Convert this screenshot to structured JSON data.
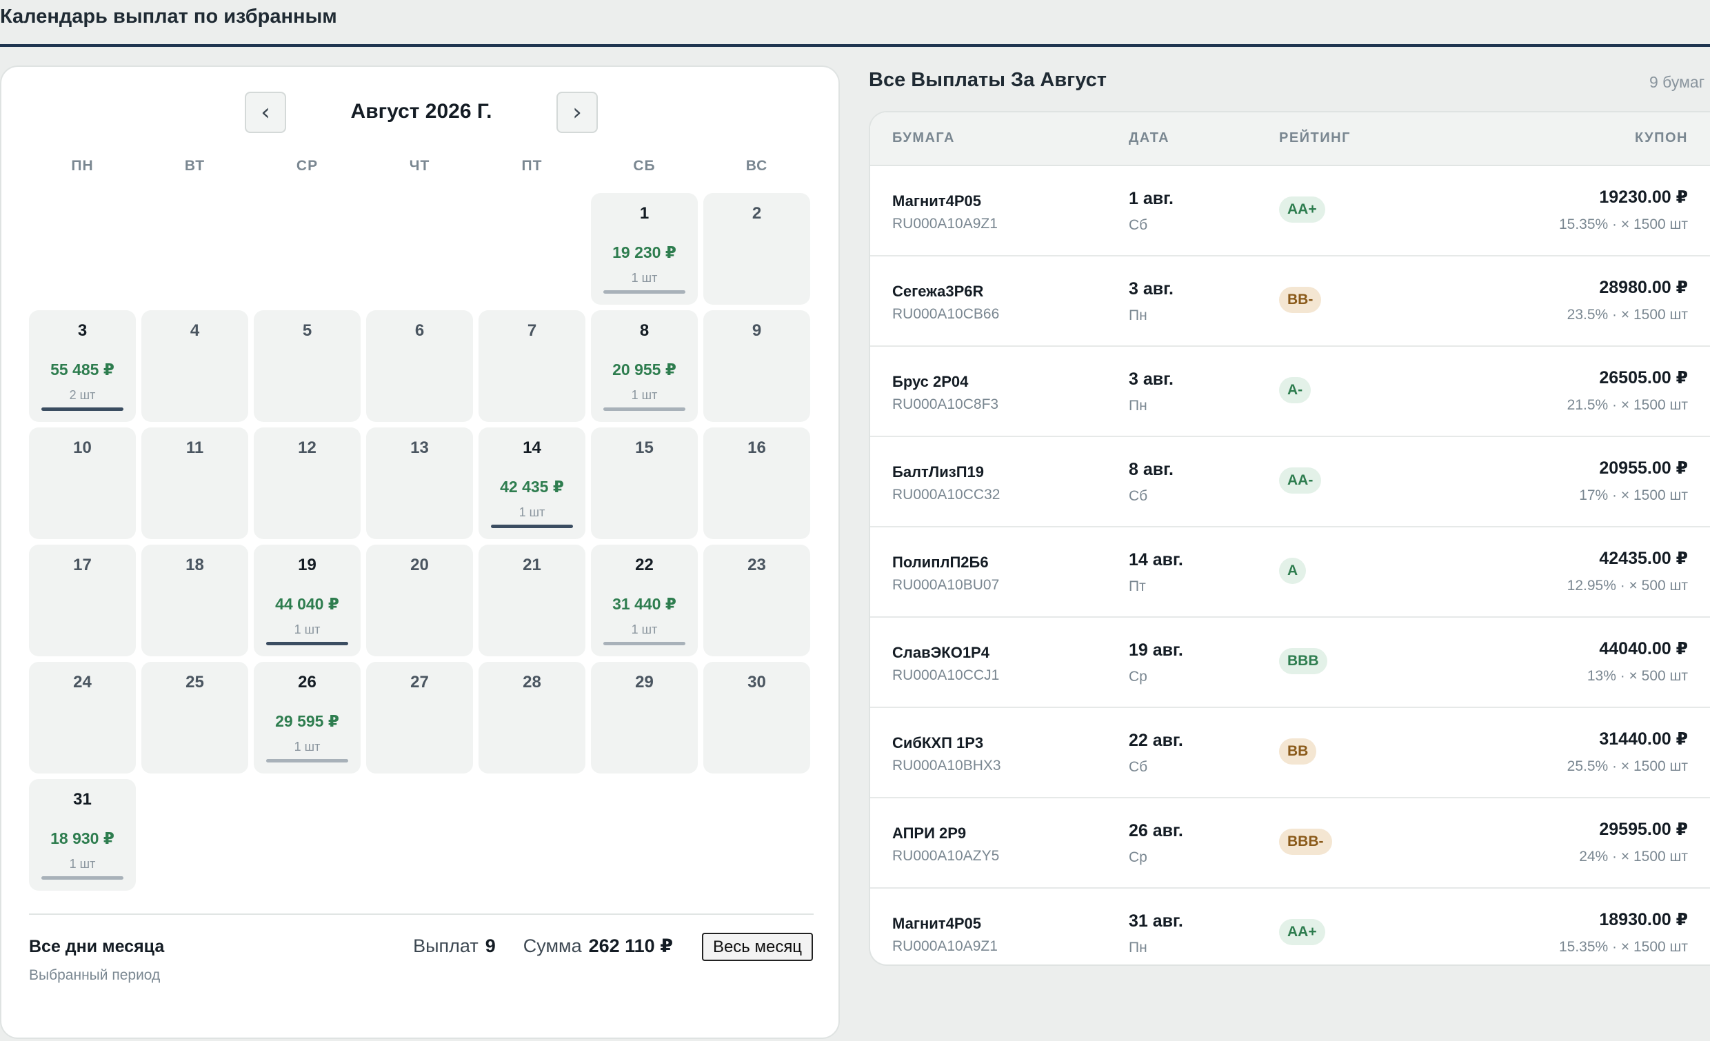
{
  "page": {
    "title": "Календарь выплат по избранным"
  },
  "calendar": {
    "month_label": "Август 2026 Г.",
    "prev_icon": "‹",
    "next_icon": "›",
    "weekdays": [
      "ПН",
      "ВТ",
      "СР",
      "ЧТ",
      "ПТ",
      "СБ",
      "ВС"
    ],
    "leading_blanks": 5,
    "days": [
      {
        "d": "1",
        "sum": "19 230 ₽",
        "count": "1 шт",
        "bar": "light"
      },
      {
        "d": "2"
      },
      {
        "d": "3",
        "sum": "55 485 ₽",
        "count": "2 шт",
        "bar": "strong"
      },
      {
        "d": "4"
      },
      {
        "d": "5"
      },
      {
        "d": "6"
      },
      {
        "d": "7"
      },
      {
        "d": "8",
        "sum": "20 955 ₽",
        "count": "1 шт",
        "bar": "light"
      },
      {
        "d": "9"
      },
      {
        "d": "10"
      },
      {
        "d": "11"
      },
      {
        "d": "12"
      },
      {
        "d": "13"
      },
      {
        "d": "14",
        "sum": "42 435 ₽",
        "count": "1 шт",
        "bar": "strong"
      },
      {
        "d": "15"
      },
      {
        "d": "16"
      },
      {
        "d": "17"
      },
      {
        "d": "18"
      },
      {
        "d": "19",
        "sum": "44 040 ₽",
        "count": "1 шт",
        "bar": "strong"
      },
      {
        "d": "20"
      },
      {
        "d": "21"
      },
      {
        "d": "22",
        "sum": "31 440 ₽",
        "count": "1 шт",
        "bar": "light"
      },
      {
        "d": "23"
      },
      {
        "d": "24"
      },
      {
        "d": "25"
      },
      {
        "d": "26",
        "sum": "29 595 ₽",
        "count": "1 шт",
        "bar": "light"
      },
      {
        "d": "27"
      },
      {
        "d": "28"
      },
      {
        "d": "29"
      },
      {
        "d": "30"
      },
      {
        "d": "31",
        "sum": "18 930 ₽",
        "count": "1 шт",
        "bar": "light"
      }
    ]
  },
  "summary": {
    "title": "Все дни месяца",
    "subtitle": "Выбранный период",
    "payments_label": "Выплат",
    "payments_value": "9",
    "sum_label": "Сумма",
    "sum_value": "262 110 ₽",
    "button_label": "Весь месяц"
  },
  "payments": {
    "title": "Все Выплаты За Август",
    "count_text": "9 бумаг",
    "headers": {
      "security": "БУМАГА",
      "date": "ДАТА",
      "rating": "РЕЙТИНГ",
      "coupon": "КУПОН"
    },
    "rows": [
      {
        "name": "Магнит4Р05",
        "isin": "RU000A10A9Z1",
        "date": "1 авг.",
        "dow": "Сб",
        "rating": "AA+",
        "tone": "green",
        "amount": "19230.00 ₽",
        "detail": "15.35% · × 1500 шт"
      },
      {
        "name": "Сегежа3Р6R",
        "isin": "RU000A10CB66",
        "date": "3 авг.",
        "dow": "Пн",
        "rating": "BB-",
        "tone": "amber",
        "amount": "28980.00 ₽",
        "detail": "23.5% · × 1500 шт"
      },
      {
        "name": "Брус 2Р04",
        "isin": "RU000A10C8F3",
        "date": "3 авг.",
        "dow": "Пн",
        "rating": "A-",
        "tone": "green",
        "amount": "26505.00 ₽",
        "detail": "21.5% · × 1500 шт"
      },
      {
        "name": "БалтЛизП19",
        "isin": "RU000A10CC32",
        "date": "8 авг.",
        "dow": "Сб",
        "rating": "AA-",
        "tone": "green",
        "amount": "20955.00 ₽",
        "detail": "17% · × 1500 шт"
      },
      {
        "name": "ПолиплП2Б6",
        "isin": "RU000A10BU07",
        "date": "14 авг.",
        "dow": "Пт",
        "rating": "A",
        "tone": "green",
        "amount": "42435.00 ₽",
        "detail": "12.95% · × 500 шт"
      },
      {
        "name": "СлавЭКО1Р4",
        "isin": "RU000A10CCJ1",
        "date": "19 авг.",
        "dow": "Ср",
        "rating": "BBB",
        "tone": "green",
        "amount": "44040.00 ₽",
        "detail": "13% · × 500 шт"
      },
      {
        "name": "СибКХП 1Р3",
        "isin": "RU000A10BHX3",
        "date": "22 авг.",
        "dow": "Сб",
        "rating": "BB",
        "tone": "amber",
        "amount": "31440.00 ₽",
        "detail": "25.5% · × 1500 шт"
      },
      {
        "name": "АПРИ 2Р9",
        "isin": "RU000A10AZY5",
        "date": "26 авг.",
        "dow": "Ср",
        "rating": "BBB-",
        "tone": "amber",
        "amount": "29595.00 ₽",
        "detail": "24% · × 1500 шт"
      },
      {
        "name": "Магнит4Р05",
        "isin": "RU000A10A9Z1",
        "date": "31 авг.",
        "dow": "Пн",
        "rating": "AA+",
        "tone": "green",
        "amount": "18930.00 ₽",
        "detail": "15.35% · × 1500 шт"
      }
    ]
  }
}
